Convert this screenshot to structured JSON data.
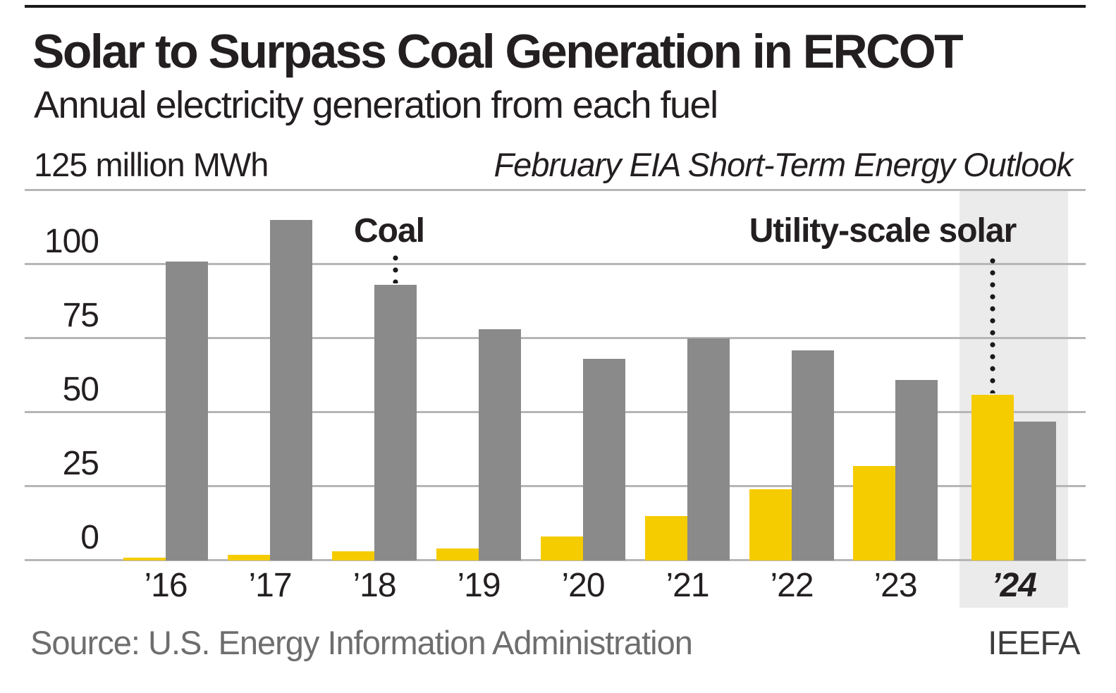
{
  "title": "Solar to Surpass Coal Generation in ERCOT",
  "subtitle": "Annual electricity generation from each fuel",
  "axis_unit_label": "125 million MWh",
  "note": "February EIA Short-Term Energy Outlook",
  "source": "Source: U.S. Energy Information Administration",
  "credit": "IEEFA",
  "series_labels": {
    "coal": "Coal",
    "solar": "Utility-scale solar"
  },
  "colors": {
    "solar": "#f5cc00",
    "coal": "#8a8a8a",
    "band": "#ebebeb",
    "gridline": "#b6b6b6",
    "text": "#231f20",
    "source_text": "#6e6e6e",
    "annotation_dots": "#1a1a1a"
  },
  "chart_data": {
    "type": "bar",
    "categories": [
      "’16",
      "’17",
      "’18",
      "’19",
      "’20",
      "’21",
      "’22",
      "’23",
      "’24"
    ],
    "series": [
      {
        "name": "Utility-scale solar",
        "color": "#f5cc00",
        "values": [
          1,
          2,
          3,
          4,
          8,
          15,
          24,
          32,
          56
        ]
      },
      {
        "name": "Coal",
        "color": "#8a8a8a",
        "values": [
          101,
          115,
          93,
          78,
          68,
          75,
          71,
          61,
          47
        ]
      }
    ],
    "title": "Solar to Surpass Coal Generation in ERCOT",
    "subtitle": "Annual electricity generation from each fuel",
    "ylabel": "million MWh",
    "yticks": [
      0,
      25,
      50,
      75,
      100,
      125
    ],
    "ylim": [
      0,
      125
    ],
    "grid": true,
    "legend_position": "inline-annotations",
    "highlighted_category": "’24",
    "annotations": [
      {
        "text": "Coal",
        "points_to": "Coal bar ’18"
      },
      {
        "text": "Utility-scale solar",
        "points_to": "Solar bar ’24"
      }
    ]
  }
}
